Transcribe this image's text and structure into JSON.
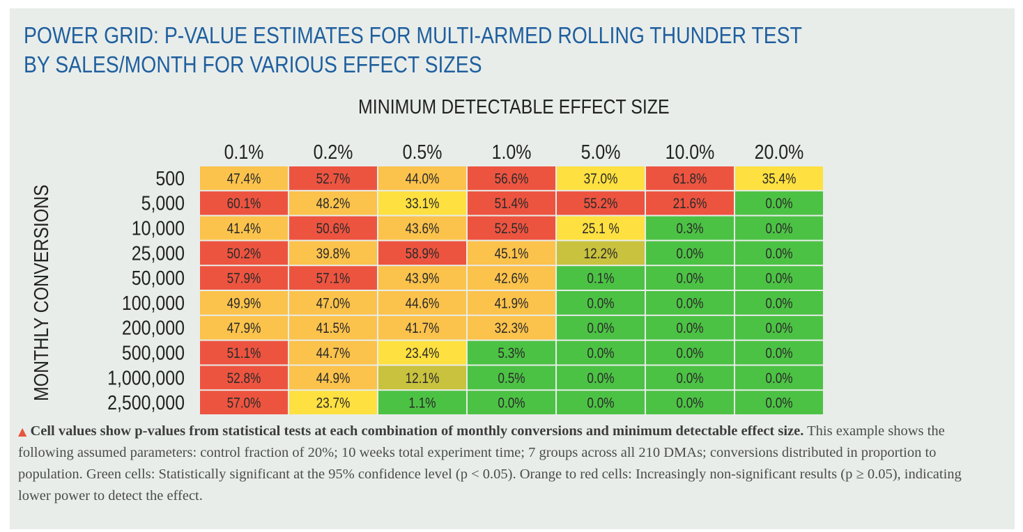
{
  "title_lines": [
    "POWER GRID: P-VALUE ESTIMATES FOR MULTI-ARMED ROLLING THUNDER TEST",
    "BY SALES/MONTH FOR VARIOUS EFFECT SIZES"
  ],
  "colors": {
    "title": "#1f5f9e",
    "panel_bg": "#e8edea",
    "green": "#4cc244",
    "red": "#ed5440",
    "orange": "#fbc24c",
    "yellow": "#fee040",
    "olive": "#c9c23e",
    "caption_marker": "#e8553c"
  },
  "chart_data": {
    "type": "table",
    "xlabel": "MINIMUM DETECTABLE EFFECT SIZE",
    "ylabel": "MONTHLY CONVERSIONS",
    "columns": [
      "0.1%",
      "0.2%",
      "0.5%",
      "1.0%",
      "5.0%",
      "10.0%",
      "20.0%"
    ],
    "rows": [
      "500",
      "5,000",
      "10,000",
      "25,000",
      "50,000",
      "100,000",
      "200,000",
      "500,000",
      "1,000,000",
      "2,500,000"
    ],
    "cells": [
      [
        "47.4%",
        "52.7%",
        "44.0%",
        "56.6%",
        "37.0%",
        "61.8%",
        "35.4%"
      ],
      [
        "60.1%",
        "48.2%",
        "33.1%",
        "51.4%",
        "55.2%",
        "21.6%",
        "0.0%"
      ],
      [
        "41.4%",
        "50.6%",
        "43.6%",
        "52.5%",
        "25.1  %",
        "0.3%",
        "0.0%"
      ],
      [
        "50.2%",
        "39.8%",
        "58.9%",
        "45.1%",
        "12.2%",
        "0.0%",
        "0.0%"
      ],
      [
        "57.9%",
        "57.1%",
        "43.9%",
        "42.6%",
        "0.1%",
        "0.0%",
        "0.0%"
      ],
      [
        "49.9%",
        "47.0%",
        "44.6%",
        "41.9%",
        "0.0%",
        "0.0%",
        "0.0%"
      ],
      [
        "47.9%",
        "41.5%",
        "41.7%",
        "32.3%",
        "0.0%",
        "0.0%",
        "0.0%"
      ],
      [
        "51.1%",
        "44.7%",
        "23.4%",
        "5.3%",
        "0.0%",
        "0.0%",
        "0.0%"
      ],
      [
        "52.8%",
        "44.9%",
        "12.1%",
        "0.5%",
        "0.0%",
        "0.0%",
        "0.0%"
      ],
      [
        "57.0%",
        "23.7%",
        "1.1%",
        "0.0%",
        "0.0%",
        "0.0%",
        "0.0%"
      ]
    ],
    "cell_colors": [
      [
        "orange",
        "red",
        "orange",
        "red",
        "yellow",
        "red",
        "yellow"
      ],
      [
        "red",
        "orange",
        "yellow",
        "red",
        "red",
        "red",
        "green"
      ],
      [
        "orange",
        "red",
        "orange",
        "red",
        "yellow",
        "green",
        "green"
      ],
      [
        "red",
        "orange",
        "red",
        "orange",
        "olive",
        "green",
        "green"
      ],
      [
        "red",
        "red",
        "orange",
        "orange",
        "green",
        "green",
        "green"
      ],
      [
        "orange",
        "orange",
        "orange",
        "orange",
        "green",
        "green",
        "green"
      ],
      [
        "orange",
        "orange",
        "orange",
        "orange",
        "green",
        "green",
        "green"
      ],
      [
        "red",
        "orange",
        "yellow",
        "green",
        "green",
        "green",
        "green"
      ],
      [
        "red",
        "orange",
        "olive",
        "green",
        "green",
        "green",
        "green"
      ],
      [
        "red",
        "yellow",
        "green",
        "green",
        "green",
        "green",
        "green"
      ]
    ]
  },
  "caption": {
    "marker": "▲",
    "bold": " Cell values show p-values from statistical tests at each combination of monthly conversions and minimum detectable effect size.",
    "text": " This example shows the following assumed parameters: control fraction of 20%; 10 weeks total experiment time; 7 groups across all 210 DMAs; conversions distributed in proportion to population. Green cells: Statistically significant at the 95% confidence level (p < 0.05). Orange to red cells: Increasingly non-significant results (p ≥ 0.05), indicating lower power to detect the effect."
  }
}
